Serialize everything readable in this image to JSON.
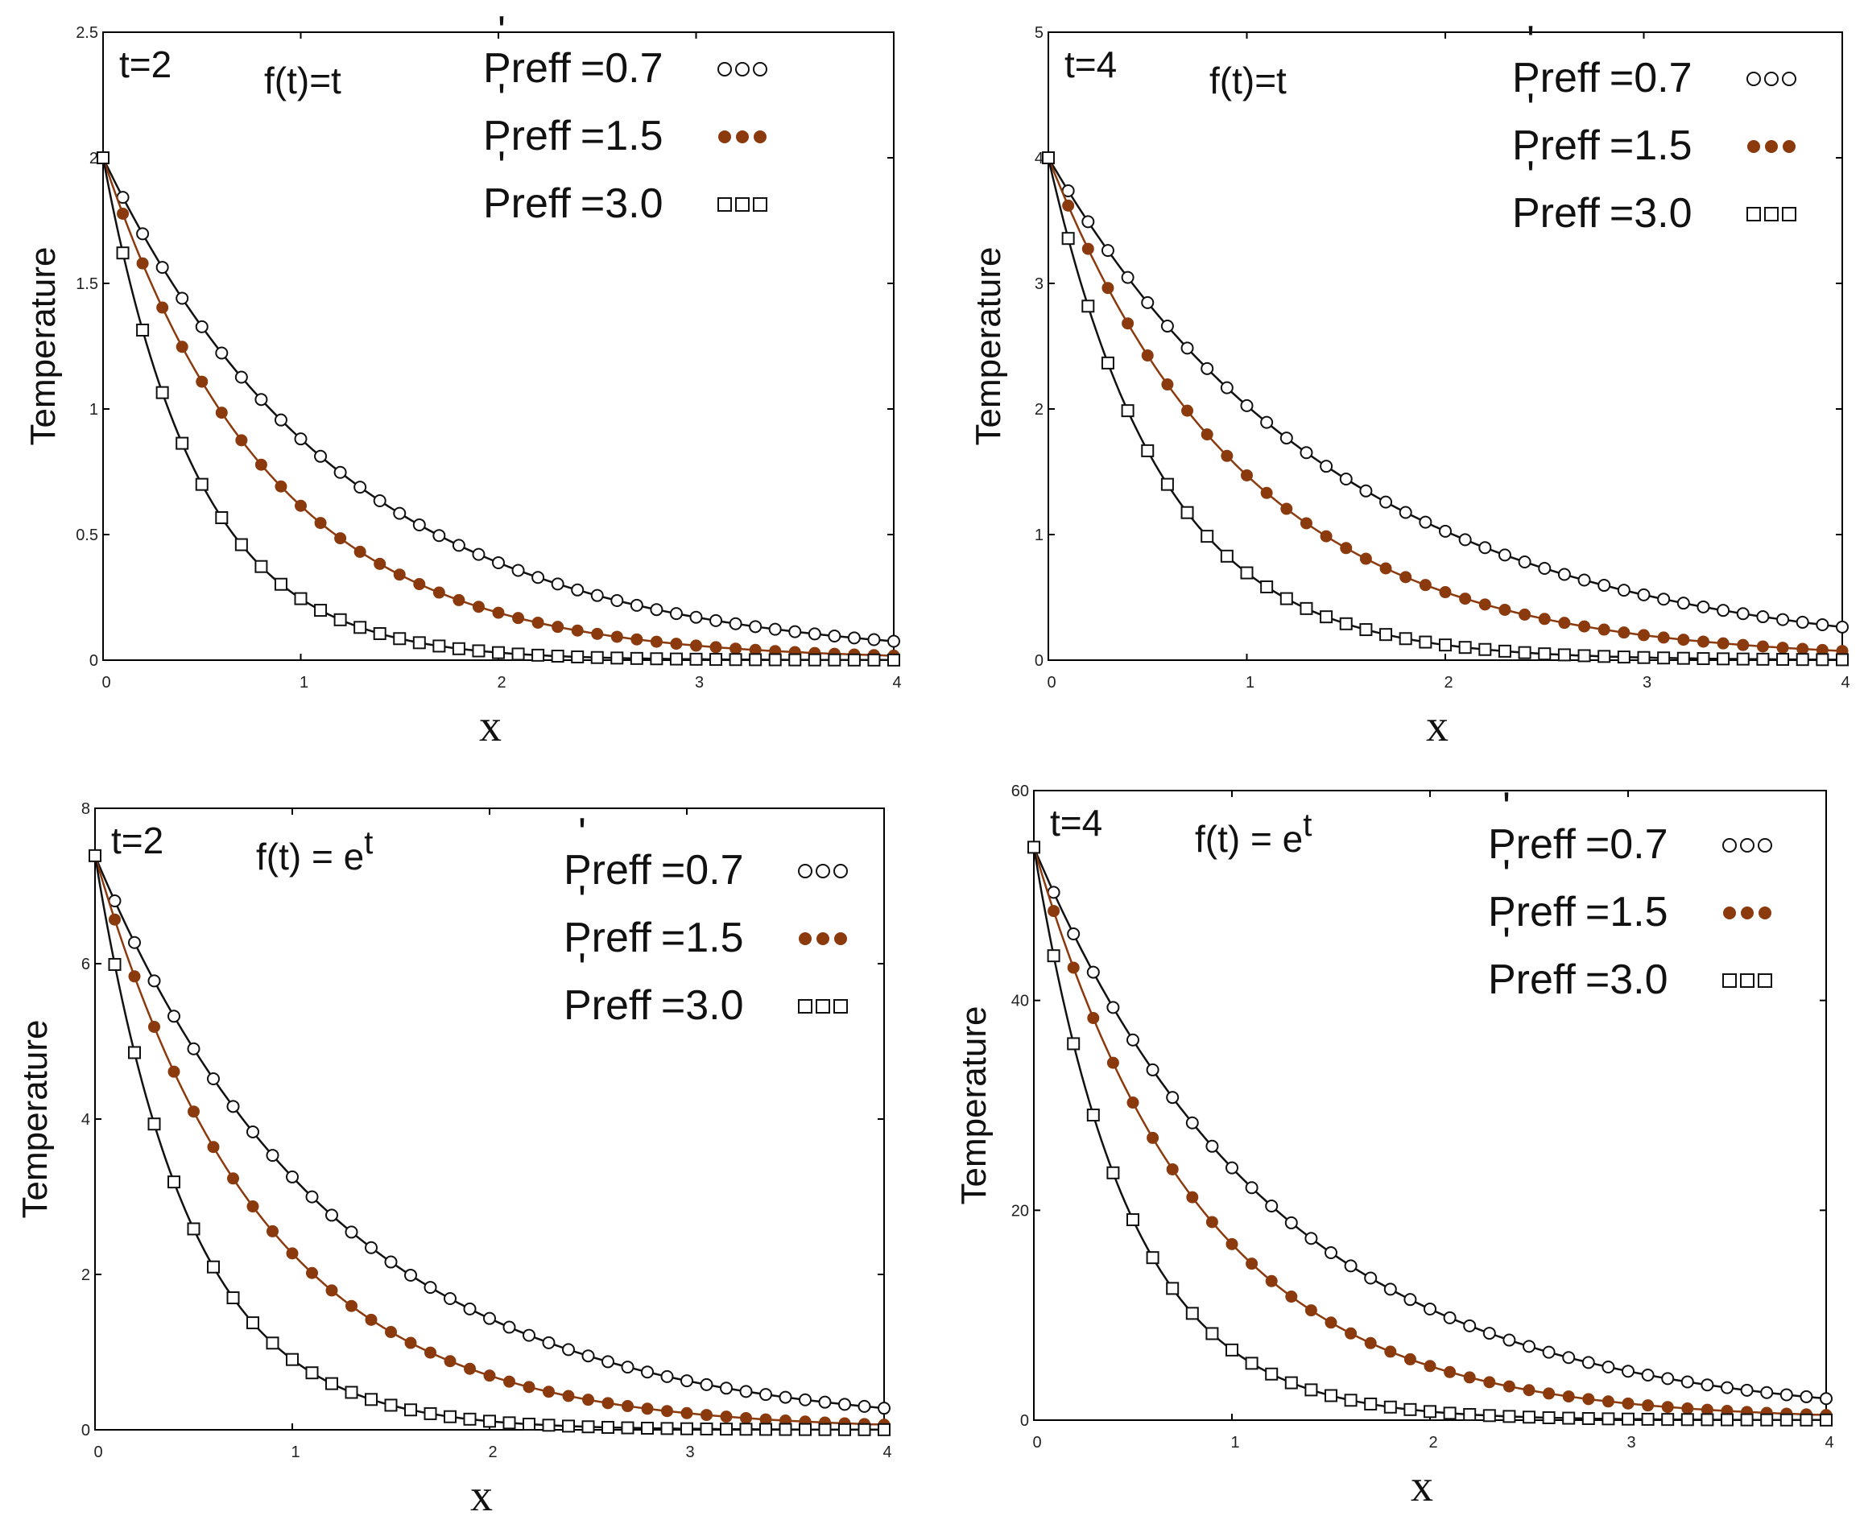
{
  "colors": {
    "black": "#111111",
    "brown": "#8B3A0E"
  },
  "legend_symbol_names": {
    "open": "open-circle",
    "filled": "filled-dot",
    "square": "open-square"
  },
  "chart_data": [
    {
      "type": "line",
      "title": "",
      "annotation": {
        "time": "t=2",
        "function_base": "f(t)=t",
        "function_sup": ""
      },
      "xlabel": "x",
      "ylabel": "Temperature",
      "xlim": [
        0,
        4
      ],
      "ylim": [
        0,
        2.5
      ],
      "xticks": [
        "0",
        "1",
        "2",
        "3",
        "4"
      ],
      "yticks": [
        "0",
        "0.5",
        "1",
        "1.5",
        "2",
        "2.5"
      ],
      "ytick_values": [
        0,
        0.5,
        1,
        1.5,
        2,
        2.5
      ],
      "x_points": [
        0,
        0.1,
        0.2,
        0.3,
        0.4,
        0.5,
        0.6,
        0.7,
        0.8,
        0.9,
        1,
        1.1,
        1.2,
        1.3,
        1.4,
        1.5,
        1.6,
        1.7,
        1.8,
        1.9,
        2,
        2.1,
        2.2,
        2.3,
        2.4,
        2.5,
        2.6,
        2.7,
        2.8,
        2.9,
        3,
        3.1,
        3.2,
        3.3,
        3.4,
        3.5,
        3.6,
        3.7,
        3.8,
        3.9,
        4
      ],
      "series": [
        {
          "name": "Preff =0.7",
          "prefix": "Preff",
          "value": "=0.7",
          "marker": "open",
          "y0": 2.0,
          "decay": 0.82
        },
        {
          "name": "Preff =1.5",
          "prefix": "Preff",
          "value": "=1.5",
          "marker": "filled",
          "y0": 2.0,
          "decay": 1.18
        },
        {
          "name": "Preff =3.0",
          "prefix": "Preff",
          "value": "=3.0",
          "marker": "square",
          "y0": 2.0,
          "decay": 2.1
        }
      ]
    },
    {
      "type": "line",
      "title": "",
      "annotation": {
        "time": "t=4",
        "function_base": "f(t)=t",
        "function_sup": ""
      },
      "xlabel": "x",
      "ylabel": "Temperature",
      "xlim": [
        0,
        4
      ],
      "ylim": [
        0,
        5
      ],
      "xticks": [
        "0",
        "1",
        "2",
        "3",
        "4"
      ],
      "yticks": [
        "0",
        "1",
        "2",
        "3",
        "4",
        "5"
      ],
      "ytick_values": [
        0,
        1,
        2,
        3,
        4,
        5
      ],
      "x_points": [
        0,
        0.1,
        0.2,
        0.3,
        0.4,
        0.5,
        0.6,
        0.7,
        0.8,
        0.9,
        1,
        1.1,
        1.2,
        1.3,
        1.4,
        1.5,
        1.6,
        1.7,
        1.8,
        1.9,
        2,
        2.1,
        2.2,
        2.3,
        2.4,
        2.5,
        2.6,
        2.7,
        2.8,
        2.9,
        3,
        3.1,
        3.2,
        3.3,
        3.4,
        3.5,
        3.6,
        3.7,
        3.8,
        3.9,
        4
      ],
      "series": [
        {
          "name": "Preff =0.7",
          "prefix": "Preff",
          "value": "=0.7",
          "marker": "open",
          "y0": 4.0,
          "decay": 0.68
        },
        {
          "name": "Preff =1.5",
          "prefix": "Preff",
          "value": "=1.5",
          "marker": "filled",
          "y0": 4.0,
          "decay": 1.0
        },
        {
          "name": "Preff =3.0",
          "prefix": "Preff",
          "value": "=3.0",
          "marker": "square",
          "y0": 4.0,
          "decay": 1.75
        }
      ]
    },
    {
      "type": "line",
      "title": "",
      "annotation": {
        "time": "t=2",
        "function_base": "f(t) = e",
        "function_sup": "t"
      },
      "xlabel": "x",
      "ylabel": "Temperature",
      "xlim": [
        0,
        4
      ],
      "ylim": [
        0,
        8
      ],
      "xticks": [
        "0",
        "1",
        "2",
        "3",
        "4"
      ],
      "yticks": [
        "0",
        "2",
        "4",
        "6",
        "8"
      ],
      "ytick_values": [
        0,
        2,
        4,
        6,
        8
      ],
      "x_points": [
        0,
        0.1,
        0.2,
        0.3,
        0.4,
        0.5,
        0.6,
        0.7,
        0.8,
        0.9,
        1,
        1.1,
        1.2,
        1.3,
        1.4,
        1.5,
        1.6,
        1.7,
        1.8,
        1.9,
        2,
        2.1,
        2.2,
        2.3,
        2.4,
        2.5,
        2.6,
        2.7,
        2.8,
        2.9,
        3,
        3.1,
        3.2,
        3.3,
        3.4,
        3.5,
        3.6,
        3.7,
        3.8,
        3.9,
        4
      ],
      "series": [
        {
          "name": "Preff =0.7",
          "prefix": "Preff",
          "value": "=0.7",
          "marker": "open",
          "y0": 7.39,
          "decay": 0.82
        },
        {
          "name": "Preff =1.5",
          "prefix": "Preff",
          "value": "=1.5",
          "marker": "filled",
          "y0": 7.39,
          "decay": 1.18
        },
        {
          "name": "Preff =3.0",
          "prefix": "Preff",
          "value": "=3.0",
          "marker": "square",
          "y0": 7.39,
          "decay": 2.1
        }
      ]
    },
    {
      "type": "line",
      "title": "",
      "annotation": {
        "time": "t=4",
        "function_base": "f(t) = e",
        "function_sup": "t"
      },
      "xlabel": "x",
      "ylabel": "Temperature",
      "xlim": [
        0,
        4
      ],
      "ylim": [
        0,
        60
      ],
      "xticks": [
        "0",
        "1",
        "2",
        "3",
        "4"
      ],
      "yticks": [
        "0",
        "20",
        "40",
        "60"
      ],
      "ytick_values": [
        0,
        20,
        40,
        60
      ],
      "x_points": [
        0,
        0.1,
        0.2,
        0.3,
        0.4,
        0.5,
        0.6,
        0.7,
        0.8,
        0.9,
        1,
        1.1,
        1.2,
        1.3,
        1.4,
        1.5,
        1.6,
        1.7,
        1.8,
        1.9,
        2,
        2.1,
        2.2,
        2.3,
        2.4,
        2.5,
        2.6,
        2.7,
        2.8,
        2.9,
        3,
        3.1,
        3.2,
        3.3,
        3.4,
        3.5,
        3.6,
        3.7,
        3.8,
        3.9,
        4
      ],
      "series": [
        {
          "name": "Preff =0.7",
          "prefix": "Preff",
          "value": "=0.7",
          "marker": "open",
          "y0": 54.6,
          "decay": 0.82
        },
        {
          "name": "Preff =1.5",
          "prefix": "Preff",
          "value": "=1.5",
          "marker": "filled",
          "y0": 54.6,
          "decay": 1.18
        },
        {
          "name": "Preff =3.0",
          "prefix": "Preff",
          "value": "=3.0",
          "marker": "square",
          "y0": 54.6,
          "decay": 2.1
        }
      ]
    }
  ]
}
